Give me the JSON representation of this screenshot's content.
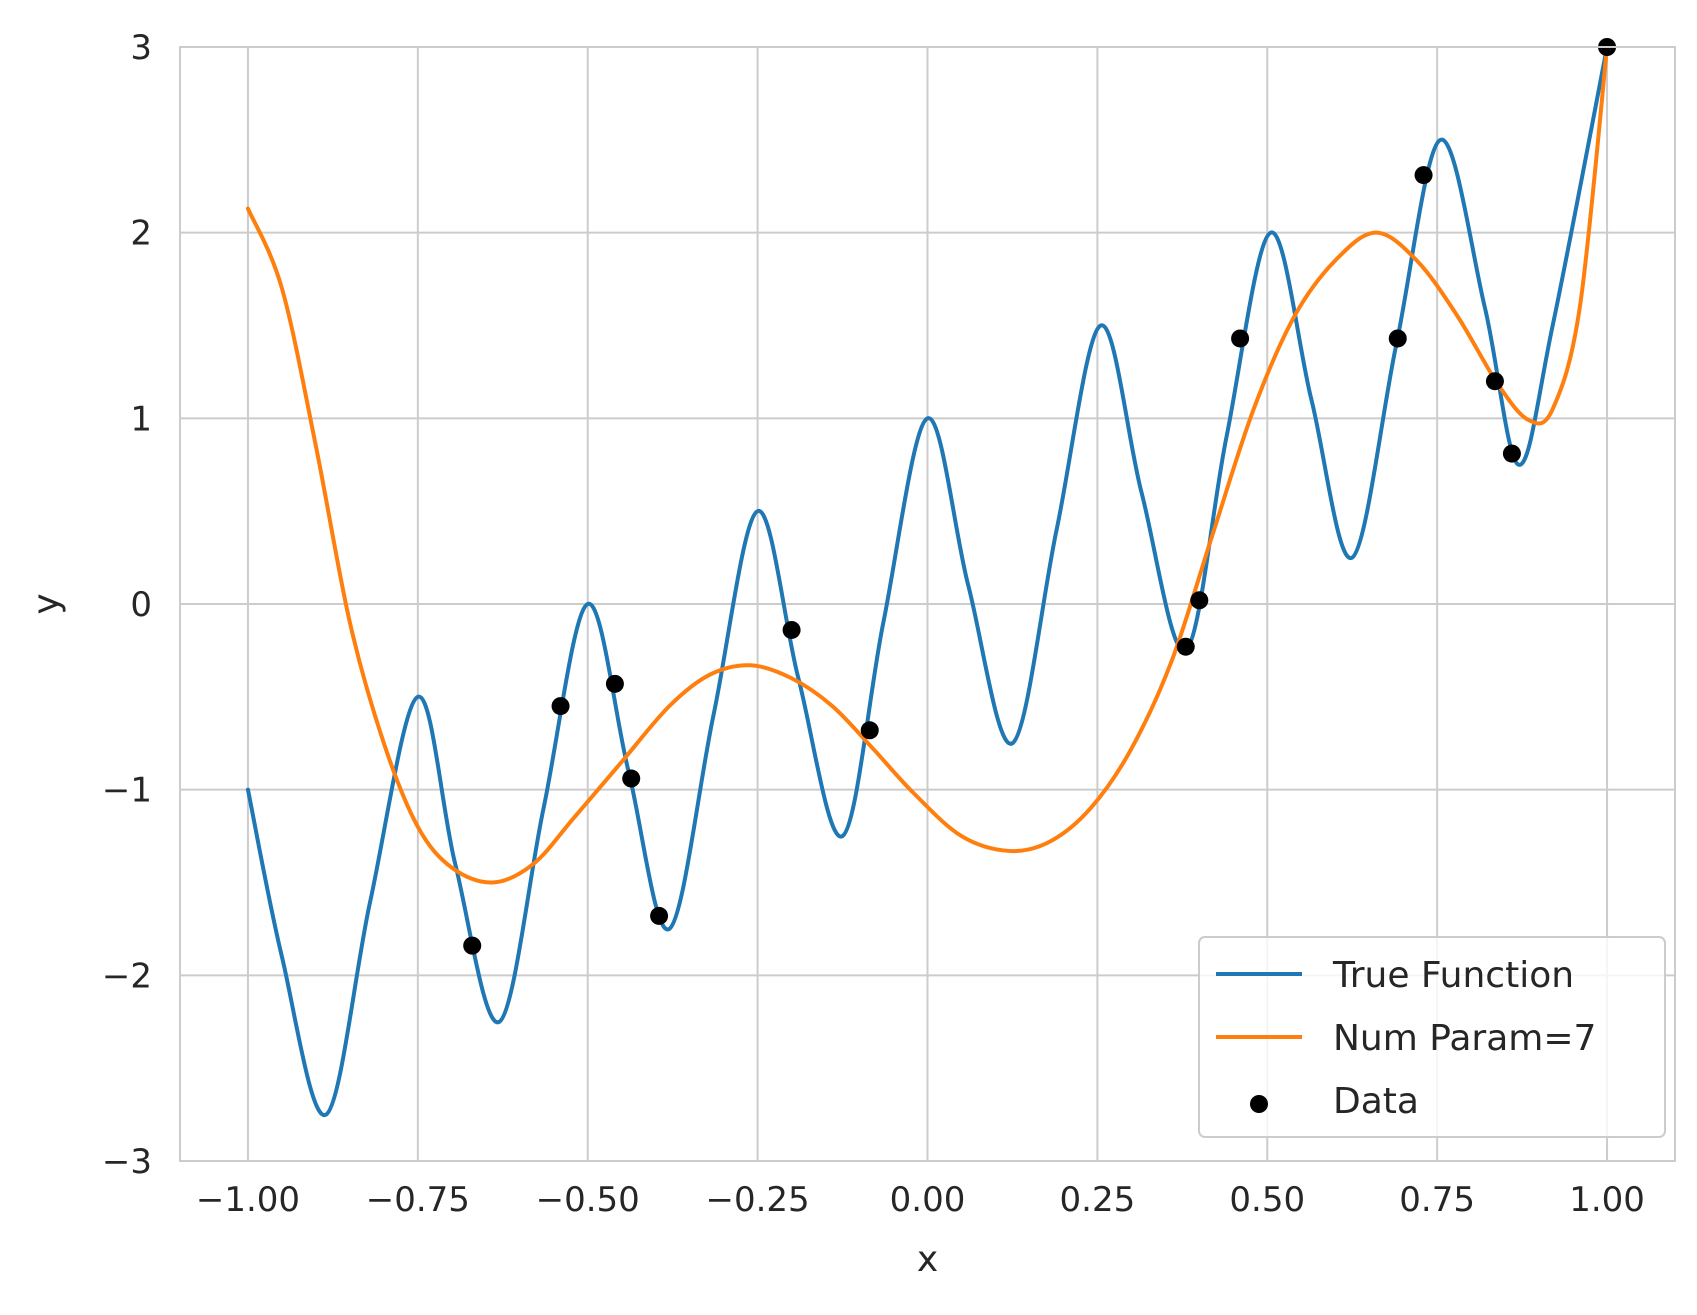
{
  "chart_data": {
    "type": "line",
    "xlabel": "x",
    "ylabel": "y",
    "xlim": [
      -1.1,
      1.1
    ],
    "ylim": [
      -3,
      3
    ],
    "grid": true,
    "x_ticks": [
      -1.0,
      -0.75,
      -0.5,
      -0.25,
      0.0,
      0.25,
      0.5,
      0.75,
      1.0
    ],
    "x_tick_labels": [
      "−1.00",
      "−0.75",
      "−0.50",
      "−0.25",
      "0.00",
      "0.25",
      "0.50",
      "0.75",
      "1.00"
    ],
    "y_ticks": [
      -3,
      -2,
      -1,
      0,
      1,
      2,
      3
    ],
    "y_tick_labels": [
      "−3",
      "−2",
      "−1",
      "0",
      "1",
      "2",
      "3"
    ],
    "legend": {
      "placement": "lower-right",
      "entries": [
        {
          "label": "True Function",
          "kind": "line",
          "color": "#1f77b4"
        },
        {
          "label": "Num Param=7",
          "kind": "line",
          "color": "#ff7f0e"
        },
        {
          "label": "Data",
          "kind": "marker",
          "color": "#000000"
        }
      ]
    },
    "series": [
      {
        "name": "True Function",
        "color": "#1f77b4",
        "x": [
          -1.0,
          -0.95,
          -0.885,
          -0.82,
          -0.75,
          -0.695,
          -0.63,
          -0.565,
          -0.5,
          -0.44,
          -0.38,
          -0.315,
          -0.25,
          -0.19,
          -0.125,
          -0.065,
          0.0,
          0.06,
          0.125,
          0.19,
          0.255,
          0.315,
          0.38,
          0.44,
          0.505,
          0.565,
          0.625,
          0.69,
          0.755,
          0.82,
          0.87,
          0.92,
          1.0
        ],
        "y": [
          -1.0,
          -1.9,
          -2.75,
          -1.6,
          -0.5,
          -1.4,
          -2.25,
          -1.1,
          0.0,
          -0.9,
          -1.75,
          -0.6,
          0.5,
          -0.4,
          -1.25,
          -0.1,
          1.0,
          0.1,
          -0.75,
          0.4,
          1.5,
          0.6,
          -0.25,
          0.9,
          2.0,
          1.1,
          0.25,
          1.4,
          2.5,
          1.6,
          0.75,
          1.5,
          3.0
        ]
      },
      {
        "name": "Num Param=7",
        "color": "#ff7f0e",
        "x": [
          -1.0,
          -0.95,
          -0.9,
          -0.85,
          -0.8,
          -0.75,
          -0.7,
          -0.64,
          -0.58,
          -0.52,
          -0.45,
          -0.38,
          -0.32,
          -0.26,
          -0.2,
          -0.14,
          -0.08,
          -0.02,
          0.05,
          0.12,
          0.18,
          0.24,
          0.3,
          0.36,
          0.42,
          0.48,
          0.54,
          0.6,
          0.66,
          0.72,
          0.78,
          0.84,
          0.885,
          0.92,
          0.96,
          1.0
        ],
        "y": [
          2.13,
          1.7,
          0.85,
          -0.1,
          -0.75,
          -1.2,
          -1.42,
          -1.5,
          -1.4,
          -1.15,
          -0.85,
          -0.55,
          -0.38,
          -0.33,
          -0.4,
          -0.55,
          -0.78,
          -1.02,
          -1.25,
          -1.33,
          -1.28,
          -1.1,
          -0.78,
          -0.3,
          0.38,
          1.05,
          1.55,
          1.85,
          2.0,
          1.85,
          1.55,
          1.18,
          0.99,
          1.05,
          1.6,
          3.0
        ]
      }
    ],
    "scatter": {
      "name": "Data",
      "color": "#000000",
      "x": [
        -0.67,
        -0.54,
        -0.46,
        -0.436,
        -0.395,
        -0.2,
        -0.085,
        0.38,
        0.4,
        0.46,
        0.692,
        0.73,
        0.835,
        0.86,
        1.0
      ],
      "y": [
        -1.84,
        -0.55,
        -0.43,
        -0.94,
        -1.68,
        -0.14,
        -0.68,
        -0.23,
        0.02,
        1.43,
        1.43,
        2.31,
        1.2,
        0.81,
        3.0
      ]
    }
  }
}
